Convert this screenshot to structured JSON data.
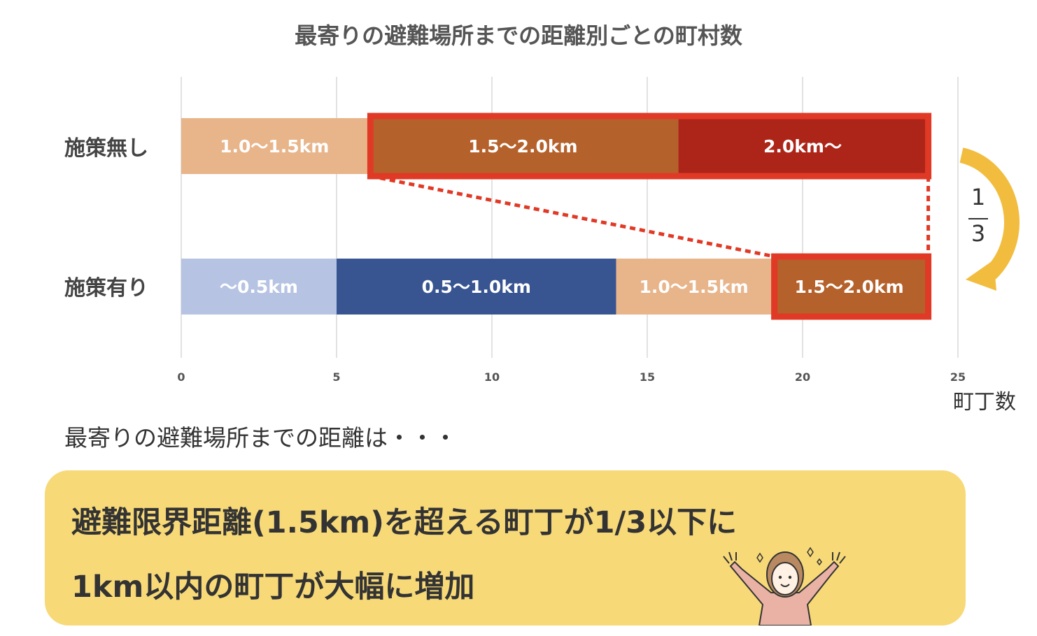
{
  "title": "最寄りの避難場所までの距離別ごとの町村数",
  "chart_data": {
    "type": "bar",
    "orientation": "horizontal",
    "stacked": true,
    "title": "最寄りの避難場所までの距離別ごとの町村数",
    "xlabel": "町丁数",
    "ylabel": "",
    "xlim": [
      0,
      25
    ],
    "xticks": [
      "0",
      "5",
      "10",
      "15",
      "20",
      "25"
    ],
    "grid": true,
    "categories": [
      "施策無し",
      "施策有り"
    ],
    "bars": [
      {
        "category": "施策無し",
        "segments": [
          {
            "label": "1.0〜1.5km",
            "value": 6,
            "color": "#e8b48a"
          },
          {
            "label": "1.5〜2.0km",
            "value": 10,
            "color": "#b5612b"
          },
          {
            "label": "2.0km〜",
            "value": 8,
            "color": "#ad2419"
          }
        ]
      },
      {
        "category": "施策有り",
        "segments": [
          {
            "label": "〜0.5km",
            "value": 5,
            "color": "#b6c3e2"
          },
          {
            "label": "0.5〜1.0km",
            "value": 9,
            "color": "#385592"
          },
          {
            "label": "1.0〜1.5km",
            "value": 5,
            "color": "#e8b48a"
          },
          {
            "label": "1.5〜2.0km",
            "value": 5,
            "color": "#b5612b"
          }
        ]
      }
    ],
    "annotation": {
      "numerator": "1",
      "denominator": "3"
    },
    "highlight_color": "#e03a26",
    "arrow_color": "#f2bd3e"
  },
  "lead_text": "最寄りの避難場所までの距離は・・・",
  "message": {
    "line1": "避難限界距離(1.5km)を超える町丁が1/3以下に",
    "line2": "1km以内の町丁が大幅に増加"
  },
  "colors": {
    "box": "#f7d978"
  }
}
